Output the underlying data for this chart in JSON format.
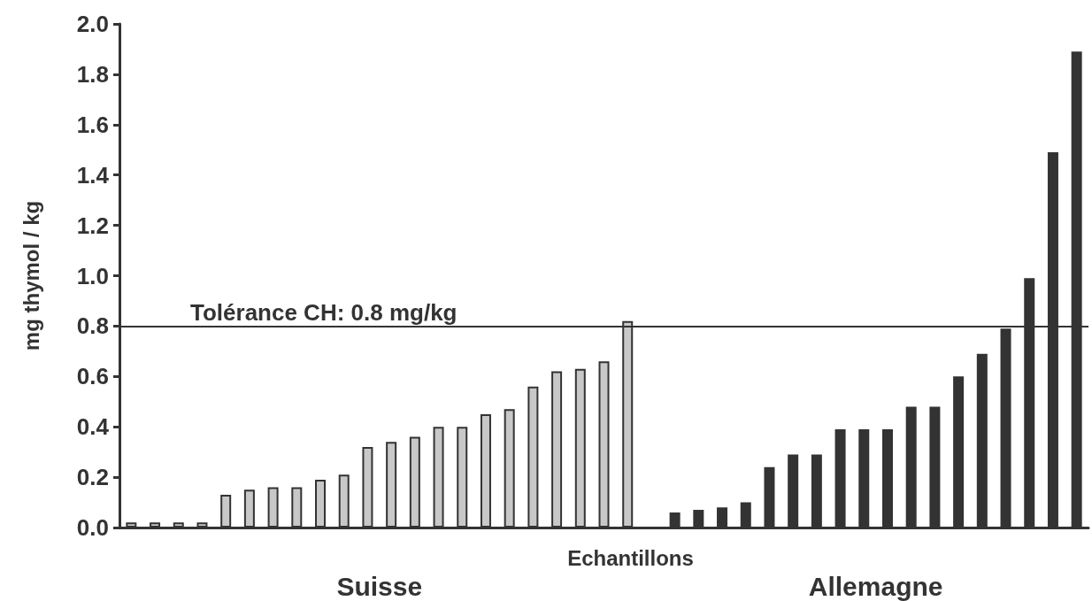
{
  "chart_data": {
    "type": "bar",
    "xlabel": "Echantillons",
    "ylabel": "mg thymol / kg",
    "categories": [
      null,
      null,
      null,
      null,
      null,
      null,
      null,
      null,
      null,
      null,
      null,
      null,
      null,
      null,
      null,
      null,
      null,
      null,
      null,
      null,
      null,
      null,
      null,
      null,
      null,
      null,
      null,
      null,
      null,
      null,
      null,
      null,
      null,
      null,
      null,
      null,
      null,
      null,
      null,
      null,
      null
    ],
    "series": [
      {
        "name": "Suisse",
        "color": "#c8c8c8",
        "values": [
          0.02,
          0.02,
          0.02,
          0.02,
          0.13,
          0.15,
          0.16,
          0.16,
          0.19,
          0.21,
          0.32,
          0.34,
          0.36,
          0.4,
          0.4,
          0.45,
          0.47,
          0.56,
          0.62,
          0.63,
          0.66,
          0.82,
          null,
          null,
          null,
          null,
          null,
          null,
          null,
          null,
          null,
          null,
          null,
          null,
          null,
          null,
          null,
          null,
          null,
          null,
          null
        ]
      },
      {
        "name": "Allemagne",
        "color": "#333333",
        "values": [
          null,
          null,
          null,
          null,
          null,
          null,
          null,
          null,
          null,
          null,
          null,
          null,
          null,
          null,
          null,
          null,
          null,
          null,
          null,
          null,
          null,
          null,
          null,
          0.06,
          0.07,
          0.08,
          0.1,
          0.24,
          0.29,
          0.29,
          0.39,
          0.39,
          0.39,
          0.48,
          0.48,
          0.6,
          0.69,
          0.79,
          0.99,
          1.49,
          1.89
        ]
      }
    ],
    "ylim": [
      0,
      2.0
    ],
    "yticks": [
      {
        "value": 0,
        "label": "0.0"
      },
      0.2,
      0.4,
      0.6,
      0.8,
      {
        "value": 1,
        "label": "1.0"
      },
      1.2,
      1.4,
      1.6,
      1.8,
      {
        "value": 2,
        "label": "2.0"
      }
    ],
    "ref_lines": [
      {
        "axis": "y",
        "value": 0.8,
        "label": "Tolérance CH: 0.8 mg/kg",
        "color": "#333333"
      }
    ],
    "grid": false,
    "legend": false
  }
}
